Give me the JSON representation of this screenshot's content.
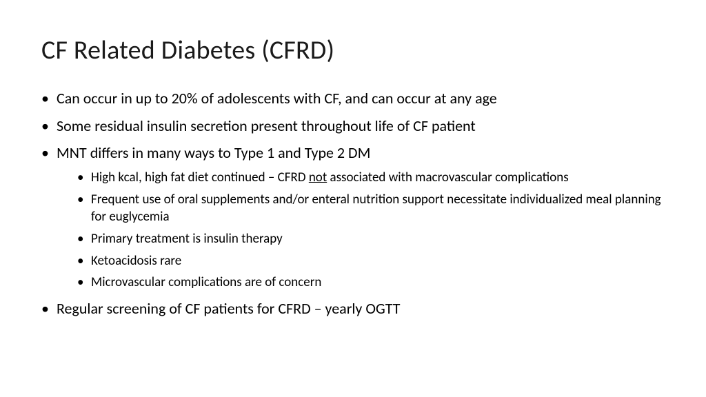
{
  "title": "CF Related Diabetes (CFRD)",
  "bullets": [
    {
      "text": "Can occur in up to 20% of adolescents with CF, and can occur at any age"
    },
    {
      "text": "Some residual insulin secretion present throughout life of CF patient"
    },
    {
      "text": "MNT differs in many ways to Type 1 and Type 2 DM",
      "sub": [
        {
          "pre": "High kcal, high fat diet continued – CFRD ",
          "u": "not",
          "post": " associated with macrovascular complications"
        },
        {
          "text": "Frequent use of oral supplements and/or enteral nutrition support necessitate individualized meal planning for euglycemia"
        },
        {
          "text": "Primary treatment is insulin therapy"
        },
        {
          "text": "Ketoacidosis rare"
        },
        {
          "text": "Microvascular complications are of concern"
        }
      ]
    },
    {
      "text": "Regular screening of CF patients for CFRD – yearly OGTT"
    }
  ],
  "style": {
    "background_color": "#ffffff",
    "text_color": "#000000",
    "title_fontsize": 38,
    "l1_fontsize": 22,
    "l2_fontsize": 19,
    "font_family": "Calibri"
  }
}
